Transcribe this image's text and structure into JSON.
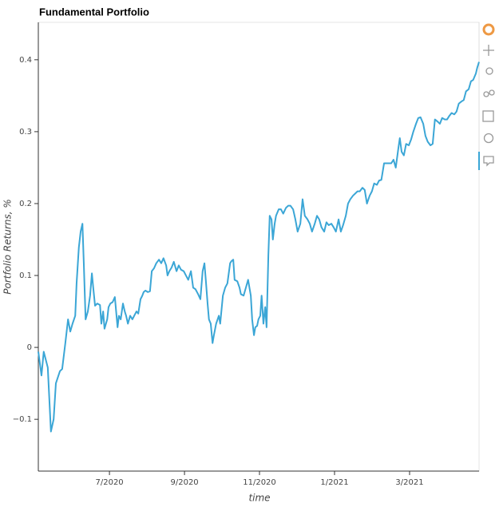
{
  "chart_data": {
    "type": "line",
    "title": "Fundamental Portfolio",
    "x_label": "time",
    "y_label": "Portfolio Returns, %",
    "color": "#3ba6d6",
    "grid": false,
    "xlim": [
      2020.342,
      2021.321
    ],
    "ylim": [
      -0.172,
      0.452
    ],
    "xticks": [
      {
        "value": 2020.5,
        "label": "7/2020"
      },
      {
        "value": 2020.6667,
        "label": "9/2020"
      },
      {
        "value": 2020.8333,
        "label": "11/2020"
      },
      {
        "value": 2021,
        "label": "1/2021"
      },
      {
        "value": 2021.1667,
        "label": "3/2021"
      }
    ],
    "yticks": [
      {
        "value": -0.1,
        "label": "−0.1"
      },
      0,
      0.1,
      0.2,
      0.3,
      0.4
    ],
    "x": [
      2020.342,
      2020.349,
      2020.354,
      2020.363,
      2020.37,
      2020.376,
      2020.381,
      2020.39,
      2020.395,
      2020.402,
      2020.408,
      2020.413,
      2020.418,
      2020.424,
      2020.427,
      2020.432,
      2020.436,
      2020.44,
      2020.443,
      2020.447,
      2020.452,
      2020.457,
      2020.461,
      2020.464,
      2020.468,
      2020.473,
      2020.479,
      2020.482,
      2020.486,
      2020.489,
      2020.495,
      2020.498,
      2020.502,
      2020.507,
      2020.512,
      2020.518,
      2020.521,
      2020.525,
      2020.53,
      2020.534,
      2020.537,
      2020.541,
      2020.546,
      2020.551,
      2020.555,
      2020.56,
      2020.564,
      2020.569,
      2020.573,
      2020.576,
      2020.58,
      2020.585,
      2020.59,
      2020.594,
      2020.599,
      2020.604,
      2020.61,
      2020.615,
      2020.62,
      2020.626,
      2020.629,
      2020.633,
      2020.638,
      2020.643,
      2020.649,
      2020.654,
      2020.659,
      2020.665,
      2020.67,
      2020.675,
      2020.681,
      2020.686,
      2020.691,
      2020.697,
      2020.702,
      2020.707,
      2020.711,
      2020.714,
      2020.718,
      2020.721,
      2020.725,
      2020.729,
      2020.732,
      2020.737,
      2020.743,
      2020.746,
      2020.752,
      2020.757,
      2020.762,
      2020.768,
      2020.771,
      2020.775,
      2020.778,
      2020.784,
      2020.789,
      2020.792,
      2020.798,
      2020.803,
      2020.808,
      2020.814,
      2020.817,
      2020.821,
      2020.824,
      2020.828,
      2020.831,
      2020.835,
      2020.838,
      2020.842,
      2020.846,
      2020.849,
      2020.853,
      2020.856,
      2020.86,
      2020.863,
      2020.867,
      2020.87,
      2020.876,
      2020.881,
      2020.886,
      2020.892,
      2020.897,
      2020.902,
      2020.908,
      2020.913,
      2020.918,
      2020.924,
      2020.929,
      2020.934,
      2020.94,
      2020.945,
      2020.95,
      2020.956,
      2020.961,
      2020.966,
      2020.971,
      2020.977,
      2020.982,
      2020.987,
      2020.993,
      2020.998,
      2021.003,
      2021.009,
      2021.014,
      2021.019,
      2021.025,
      2021.03,
      2021.035,
      2021.041,
      2021.046,
      2021.051,
      2021.056,
      2021.062,
      2021.067,
      2021.072,
      2021.078,
      2021.083,
      2021.088,
      2021.094,
      2021.099,
      2021.104,
      2021.11,
      2021.115,
      2021.12,
      2021.126,
      2021.131,
      2021.136,
      2021.142,
      2021.145,
      2021.149,
      2021.154,
      2021.159,
      2021.165,
      2021.17,
      2021.175,
      2021.181,
      2021.186,
      2021.191,
      2021.197,
      2021.202,
      2021.207,
      2021.213,
      2021.218,
      2021.223,
      2021.229,
      2021.234,
      2021.239,
      2021.245,
      2021.25,
      2021.255,
      2021.26,
      2021.266,
      2021.271,
      2021.276,
      2021.282,
      2021.287,
      2021.292,
      2021.298,
      2021.303,
      2021.308,
      2021.314,
      2021.317,
      2021.321
    ],
    "values": [
      -0.006,
      -0.039,
      -0.006,
      -0.028,
      -0.117,
      -0.1,
      -0.05,
      -0.033,
      -0.03,
      0.006,
      0.039,
      0.022,
      0.033,
      0.044,
      0.089,
      0.139,
      0.161,
      0.172,
      0.117,
      0.039,
      0.05,
      0.072,
      0.103,
      0.083,
      0.058,
      0.061,
      0.059,
      0.033,
      0.05,
      0.026,
      0.039,
      0.056,
      0.061,
      0.063,
      0.07,
      0.028,
      0.044,
      0.039,
      0.061,
      0.05,
      0.044,
      0.033,
      0.044,
      0.039,
      0.044,
      0.05,
      0.047,
      0.067,
      0.072,
      0.077,
      0.079,
      0.077,
      0.078,
      0.106,
      0.11,
      0.117,
      0.122,
      0.117,
      0.124,
      0.114,
      0.1,
      0.106,
      0.111,
      0.119,
      0.106,
      0.114,
      0.108,
      0.106,
      0.1,
      0.094,
      0.106,
      0.083,
      0.081,
      0.074,
      0.067,
      0.106,
      0.117,
      0.094,
      0.061,
      0.039,
      0.033,
      0.006,
      0.017,
      0.033,
      0.044,
      0.033,
      0.072,
      0.083,
      0.089,
      0.117,
      0.12,
      0.122,
      0.094,
      0.092,
      0.083,
      0.074,
      0.072,
      0.083,
      0.094,
      0.072,
      0.039,
      0.017,
      0.028,
      0.03,
      0.039,
      0.044,
      0.072,
      0.033,
      0.056,
      0.028,
      0.128,
      0.183,
      0.178,
      0.15,
      0.172,
      0.183,
      0.192,
      0.192,
      0.186,
      0.194,
      0.197,
      0.197,
      0.192,
      0.178,
      0.161,
      0.172,
      0.206,
      0.183,
      0.178,
      0.172,
      0.161,
      0.172,
      0.183,
      0.178,
      0.167,
      0.161,
      0.174,
      0.17,
      0.172,
      0.167,
      0.161,
      0.178,
      0.161,
      0.17,
      0.183,
      0.2,
      0.206,
      0.211,
      0.214,
      0.217,
      0.217,
      0.222,
      0.219,
      0.2,
      0.211,
      0.217,
      0.228,
      0.226,
      0.232,
      0.233,
      0.256,
      0.256,
      0.256,
      0.256,
      0.261,
      0.25,
      0.278,
      0.291,
      0.272,
      0.267,
      0.283,
      0.281,
      0.289,
      0.3,
      0.311,
      0.319,
      0.32,
      0.311,
      0.294,
      0.286,
      0.281,
      0.283,
      0.317,
      0.314,
      0.311,
      0.319,
      0.317,
      0.317,
      0.322,
      0.326,
      0.324,
      0.328,
      0.339,
      0.342,
      0.344,
      0.356,
      0.359,
      0.37,
      0.372,
      0.381,
      0.389,
      0.397
    ]
  }
}
